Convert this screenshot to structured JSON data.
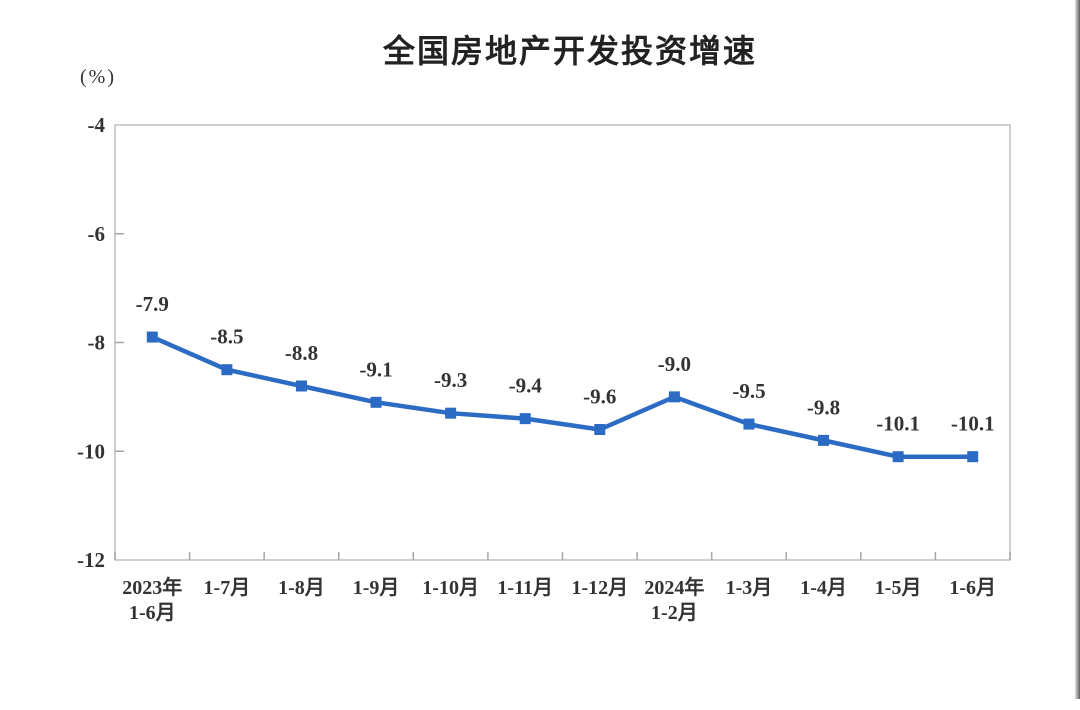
{
  "chart_data": {
    "type": "line",
    "title": "全国房地产开发投资增速",
    "unit_label": "(%)",
    "categories": [
      "2023年\n1-6月",
      "1-7月",
      "1-8月",
      "1-9月",
      "1-10月",
      "1-11月",
      "1-12月",
      "2024年\n1-2月",
      "1-3月",
      "1-4月",
      "1-5月",
      "1-6月"
    ],
    "values": [
      -7.9,
      -8.5,
      -8.8,
      -9.1,
      -9.3,
      -9.4,
      -9.6,
      -9.0,
      -9.5,
      -9.8,
      -10.1,
      -10.1
    ],
    "data_labels": [
      "-7.9",
      "-8.5",
      "-8.8",
      "-9.1",
      "-9.3",
      "-9.4",
      "-9.6",
      "-9.0",
      "-9.5",
      "-9.8",
      "-10.1",
      "-10.1"
    ],
    "xlabel": "",
    "ylabel": "(%)",
    "ylim": [
      -12,
      -4
    ],
    "y_ticks": [
      -4,
      -6,
      -8,
      -10,
      -12
    ],
    "y_tick_labels": [
      "-4",
      "-6",
      "-8",
      "-10",
      "-12"
    ],
    "grid": false,
    "legend_position": "none",
    "marker": "square",
    "colors": {
      "line": "#2B6BC3",
      "marker": "#2B6BC3",
      "text": "#333333",
      "plot_border": "#BFBFBF",
      "tick": "#A6A6A6"
    }
  }
}
